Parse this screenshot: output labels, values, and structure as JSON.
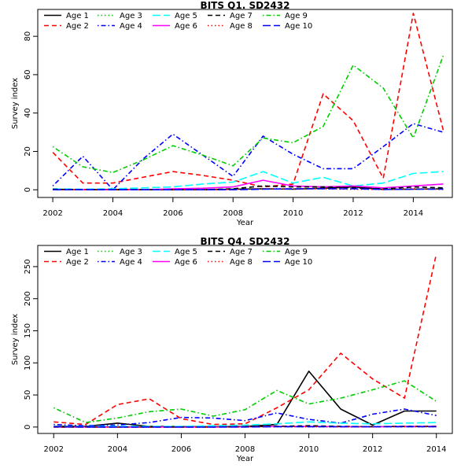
{
  "chart_data": [
    {
      "type": "line",
      "title": "BITS Q1. SD2432",
      "xlabel": "Year",
      "ylabel": "Survey index",
      "xlim": [
        2001.5,
        2015.3
      ],
      "ylim": [
        -4,
        94
      ],
      "xticks": [
        2002,
        2004,
        2006,
        2008,
        2010,
        2012,
        2014
      ],
      "yticks": [
        0,
        20,
        40,
        60,
        80
      ],
      "grid": false,
      "legend_position": "top-left",
      "x": [
        2002,
        2003,
        2004,
        2005,
        2006,
        2007,
        2008,
        2009,
        2010,
        2011,
        2012,
        2013,
        2014,
        2015
      ],
      "series": [
        {
          "name": "Age 1",
          "color": "#000000",
          "dash": "solid",
          "values": [
            0,
            0,
            0.2,
            0,
            0,
            0,
            0.3,
            0.5,
            0.3,
            0.8,
            1.5,
            0.2,
            0.3,
            0.5
          ]
        },
        {
          "name": "Age 2",
          "color": "#ff0000",
          "dash": "dashed",
          "values": [
            19.5,
            3.5,
            3.5,
            6.5,
            9.5,
            7.5,
            5,
            1.5,
            3,
            50,
            36,
            6,
            92,
            31
          ]
        },
        {
          "name": "Age 3",
          "color": "#00cd00",
          "dash": "dotted",
          "values": [
            0,
            0,
            0,
            0,
            0,
            0,
            0.5,
            0.5,
            0.5,
            0.5,
            0.3,
            0.5,
            0.5,
            0.5
          ]
        },
        {
          "name": "Age 4",
          "color": "#0000ff",
          "dash": "dotdash",
          "values": [
            2,
            17.5,
            0,
            16,
            29,
            18,
            7,
            28,
            18.5,
            11,
            11,
            22.5,
            34.5,
            30
          ]
        },
        {
          "name": "Age 5",
          "color": "#00ffff",
          "dash": "longdash",
          "values": [
            0.5,
            0.3,
            0.5,
            1,
            1.5,
            3,
            4,
            9.5,
            3.5,
            6.5,
            2,
            3.5,
            8.5,
            9.5
          ]
        },
        {
          "name": "Age 6",
          "color": "#ff00ff",
          "dash": "solid",
          "values": [
            0,
            0,
            0,
            0,
            0.5,
            0.8,
            1.5,
            5,
            2,
            1.5,
            2,
            1,
            2,
            3
          ]
        },
        {
          "name": "Age 7",
          "color": "#000000",
          "dash": "dashed",
          "values": [
            0.3,
            0,
            0,
            0,
            0,
            0,
            0.5,
            2,
            1.5,
            1.5,
            1,
            0.5,
            1.5,
            1
          ]
        },
        {
          "name": "Age 8",
          "color": "#ff0000",
          "dash": "dotted",
          "values": [
            0,
            0,
            0,
            0,
            0,
            0,
            0.2,
            0.5,
            0.5,
            0.5,
            0.3,
            0.2,
            0.5,
            0.2
          ]
        },
        {
          "name": "Age 9",
          "color": "#00cd00",
          "dash": "dotdash",
          "values": [
            22.5,
            12,
            9,
            15.5,
            23,
            18,
            12.5,
            27,
            24.5,
            33,
            65,
            53,
            27,
            70
          ]
        },
        {
          "name": "Age 10",
          "color": "#0000ff",
          "dash": "longdash",
          "values": [
            0,
            0,
            0,
            0,
            0,
            0,
            0,
            0.3,
            0.5,
            0.5,
            0.5,
            0.2,
            0.3,
            0.3
          ]
        }
      ]
    },
    {
      "type": "line",
      "title": "BITS Q4. SD2432",
      "xlabel": "Year",
      "ylabel": "Survey index",
      "xlim": [
        2001.5,
        2014.5
      ],
      "ylim": [
        -10,
        283
      ],
      "xticks": [
        2002,
        2004,
        2006,
        2008,
        2010,
        2012,
        2014
      ],
      "yticks": [
        0,
        50,
        100,
        150,
        200,
        250
      ],
      "grid": false,
      "legend_position": "top-left",
      "x": [
        2002,
        2003,
        2004,
        2005,
        2006,
        2007,
        2008,
        2009,
        2010,
        2011,
        2012,
        2013,
        2014
      ],
      "series": [
        {
          "name": "Age 1",
          "color": "#000000",
          "dash": "solid",
          "values": [
            1,
            1,
            6,
            1,
            0.5,
            0.5,
            1,
            4,
            87,
            28,
            3,
            25,
            25
          ]
        },
        {
          "name": "Age 2",
          "color": "#ff0000",
          "dash": "dashed",
          "values": [
            8,
            4,
            35,
            44,
            13,
            4,
            5,
            30,
            58,
            115,
            75,
            45,
            270
          ]
        },
        {
          "name": "Age 3",
          "color": "#00cd00",
          "dash": "dotted",
          "values": [
            0,
            0,
            0,
            0,
            0,
            0,
            0.5,
            0.5,
            0.5,
            0.5,
            0.5,
            0.5,
            0.5
          ]
        },
        {
          "name": "Age 4",
          "color": "#0000ff",
          "dash": "dotdash",
          "values": [
            4,
            2,
            3,
            7,
            15,
            14,
            10,
            22,
            12,
            6,
            20,
            28,
            18
          ]
        },
        {
          "name": "Age 5",
          "color": "#00ffff",
          "dash": "longdash",
          "values": [
            0.5,
            0.5,
            1,
            1,
            1,
            2,
            3,
            5,
            8,
            6,
            5,
            6,
            7
          ]
        },
        {
          "name": "Age 6",
          "color": "#ff00ff",
          "dash": "solid",
          "values": [
            0,
            0,
            0,
            0,
            0,
            0,
            0.5,
            1,
            1,
            0.5,
            0.5,
            1,
            1
          ]
        },
        {
          "name": "Age 7",
          "color": "#000000",
          "dash": "dashed",
          "values": [
            0,
            0,
            0,
            0,
            0,
            0,
            0.5,
            1,
            2,
            1,
            0.5,
            1,
            1
          ]
        },
        {
          "name": "Age 8",
          "color": "#ff0000",
          "dash": "dotted",
          "values": [
            0,
            0,
            0,
            0,
            0,
            0,
            0,
            0.5,
            0.5,
            0.5,
            0.5,
            0.5,
            0.5
          ]
        },
        {
          "name": "Age 9",
          "color": "#00cd00",
          "dash": "dotdash",
          "values": [
            30,
            7,
            14,
            24,
            28,
            17,
            27,
            57,
            36,
            45,
            58,
            72,
            40
          ]
        },
        {
          "name": "Age 10",
          "color": "#0000ff",
          "dash": "longdash",
          "values": [
            0.5,
            0,
            0,
            0,
            0,
            0,
            0,
            0.5,
            0.5,
            0.5,
            0.5,
            0.5,
            0.5
          ]
        }
      ]
    }
  ]
}
